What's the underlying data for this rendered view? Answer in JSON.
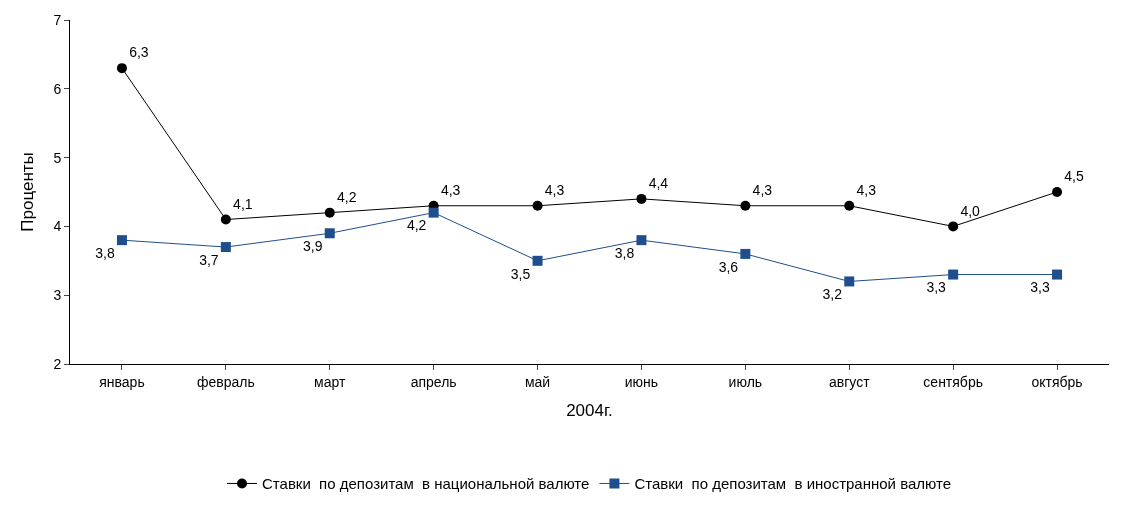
{
  "chart_data": {
    "type": "line",
    "ylabel": "Проценты",
    "xlabel": "2004г.",
    "categories": [
      "январь",
      "февраль",
      "март",
      "апрель",
      "май",
      "июнь",
      "июль",
      "август",
      "сентябрь",
      "октябрь"
    ],
    "series": [
      {
        "name": "Ставки  по депозитам  в национальной валюте",
        "color": "#000000",
        "marker": "circle",
        "values": [
          6.3,
          4.1,
          4.2,
          4.3,
          4.3,
          4.4,
          4.3,
          4.3,
          4.0,
          4.5
        ],
        "value_labels": [
          "6,3",
          "4,1",
          "4,2",
          "4,3",
          "4,3",
          "4,4",
          "4,3",
          "4,3",
          "4,0",
          "4,5"
        ]
      },
      {
        "name": "Ставки  по депозитам  в иностранной валюте",
        "color": "#1f4e8c",
        "marker": "square",
        "values": [
          3.8,
          3.7,
          3.9,
          4.2,
          3.5,
          3.8,
          3.6,
          3.2,
          3.3,
          3.3
        ],
        "value_labels": [
          "3,8",
          "3,7",
          "3,9",
          "4,2",
          "3,5",
          "3,8",
          "3,6",
          "3,2",
          "3,3",
          "3,3"
        ]
      }
    ],
    "ylim": [
      2,
      7
    ],
    "yticks": [
      2,
      3,
      4,
      5,
      6,
      7
    ],
    "legend": "bottom",
    "line_style": "solid"
  }
}
